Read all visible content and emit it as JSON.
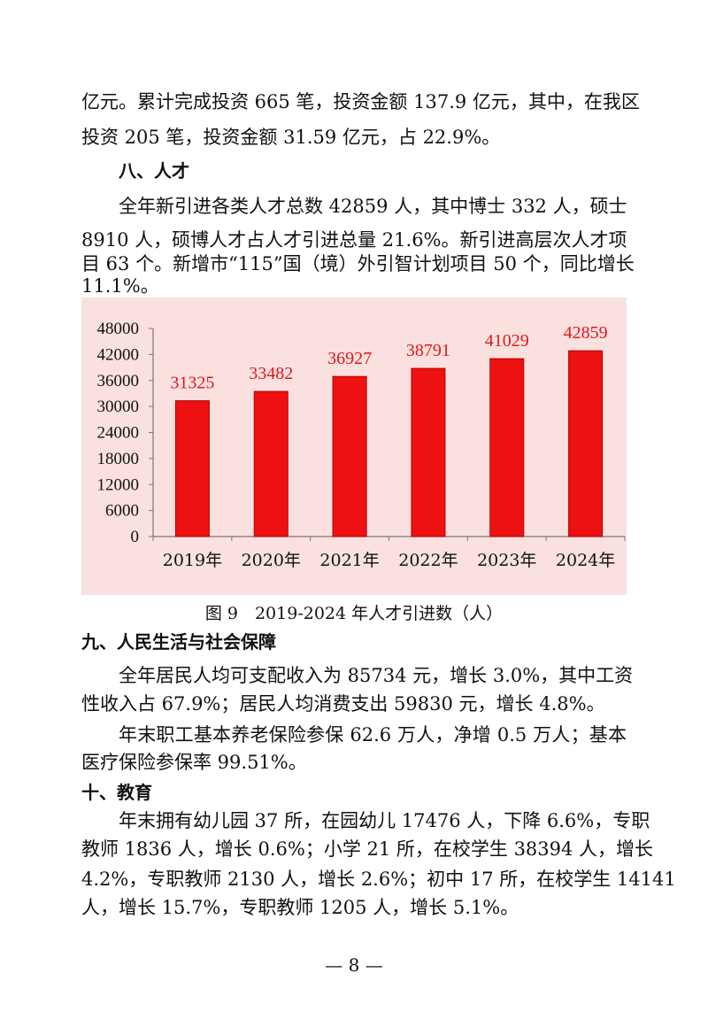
{
  "paragraphs": {
    "p1_line1": "亿元。累计完成投资 665 笔，投资金额 137.9 亿元，其中，在我区",
    "p1_line2": "投资 205 笔，投资金额 31.59 亿元，占 22.9%。",
    "heading8": "八、人才",
    "p2_line1": "全年新引进各类人才总数 42859 人，其中博士 332 人，硕士",
    "p2_line2": "8910 人，硕博人才占人才引进总量 21.6%。新引进高层次人才项",
    "p2_line3": "目 63 个。新增市“115”国（境）外引智计划项目 50 个，同比增长",
    "p2_line4": "11.1%。",
    "heading9": "九、人民生活与社会保障",
    "p3_line1": "全年居民人均可支配收入为 85734 元，增长 3.0%，其中工资",
    "p3_line2": "性收入占 67.9%；居民人均消费支出 59830 元，增长 4.8%。",
    "p4_line1": "年末职工基本养老保险参保 62.6 万人，净增 0.5 万人；基本",
    "p4_line2": "医疗保险参保率 99.51%。",
    "heading10": "十、教育",
    "p5_line1": "年末拥有幼儿园 37 所，在园幼儿 17476 人，下降 6.6%，专职",
    "p5_line2": "教师 1836 人，增长 0.6%；小学 21 所，在校学生 38394 人，增长",
    "p5_line3": "4.2%，专职教师 2130 人，增长 2.6%；初中 17 所，在校学生 14141",
    "p5_line4": "人，增长 15.7%，专职教师 1205 人，增长 5.1%。"
  },
  "figure": {
    "caption": "图 9　2019-2024 年人才引进数（人）"
  },
  "page_number": "— 8 —",
  "chart_data": {
    "type": "bar",
    "title": "",
    "xlabel": "",
    "ylabel": "",
    "categories": [
      "2019年",
      "2020年",
      "2021年",
      "2022年",
      "2023年",
      "2024年"
    ],
    "values": [
      31325,
      33482,
      36927,
      38791,
      41029,
      42859
    ],
    "ylim": [
      0,
      48000
    ],
    "yticks": [
      0,
      6000,
      12000,
      18000,
      24000,
      30000,
      36000,
      42000,
      48000
    ],
    "grid": false,
    "legend": "none",
    "colors": {
      "bar": "#ee1111",
      "bar_edge": "#b30000",
      "value_label": "#e01818",
      "background": "#fbe0e0",
      "axis": "#777777"
    }
  }
}
